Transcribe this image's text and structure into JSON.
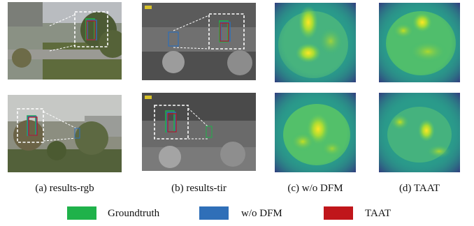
{
  "captions": {
    "a": "(a) results-rgb",
    "b": "(b) results-tir",
    "c": "(c) w/o DFM",
    "d": "(d) TAAT"
  },
  "legend": [
    {
      "label": "Groundtruth",
      "color": "#1fb24a"
    },
    {
      "label": "w/o DFM",
      "color": "#2f6fb8"
    },
    {
      "label": "TAAT",
      "color": "#c0161b"
    }
  ],
  "colors": {
    "groundtruth": "#1fb24a",
    "wo_dfm": "#2f6fb8",
    "taat": "#c0161b",
    "heat_low": "#3b0f70",
    "heat_mid": "#21918c",
    "heat_high": "#fde725"
  }
}
